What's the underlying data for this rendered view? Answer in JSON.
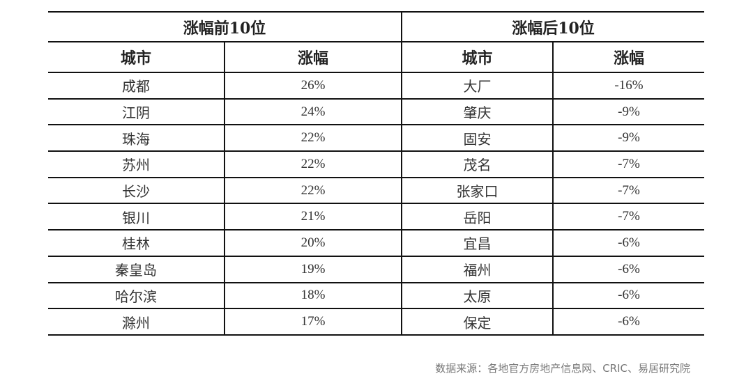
{
  "table": {
    "groups": [
      "涨幅前10位",
      "涨幅后10位"
    ],
    "headers": [
      "城市",
      "涨幅",
      "城市",
      "涨幅"
    ],
    "rows": [
      [
        "成都",
        "26%",
        "大厂",
        "-16%"
      ],
      [
        "江阴",
        "24%",
        "肇庆",
        "-9%"
      ],
      [
        "珠海",
        "22%",
        "固安",
        "-9%"
      ],
      [
        "苏州",
        "22%",
        "茂名",
        "-7%"
      ],
      [
        "长沙",
        "22%",
        "张家口",
        "-7%"
      ],
      [
        "银川",
        "21%",
        "岳阳",
        "-7%"
      ],
      [
        "桂林",
        "20%",
        "宜昌",
        "-6%"
      ],
      [
        "秦皇岛",
        "19%",
        "福州",
        "-6%"
      ],
      [
        "哈尔滨",
        "18%",
        "太原",
        "-6%"
      ],
      [
        "滁州",
        "17%",
        "保定",
        "-6%"
      ]
    ]
  },
  "source": "数据来源：各地官方房地产信息网、CRIC、易居研究院"
}
